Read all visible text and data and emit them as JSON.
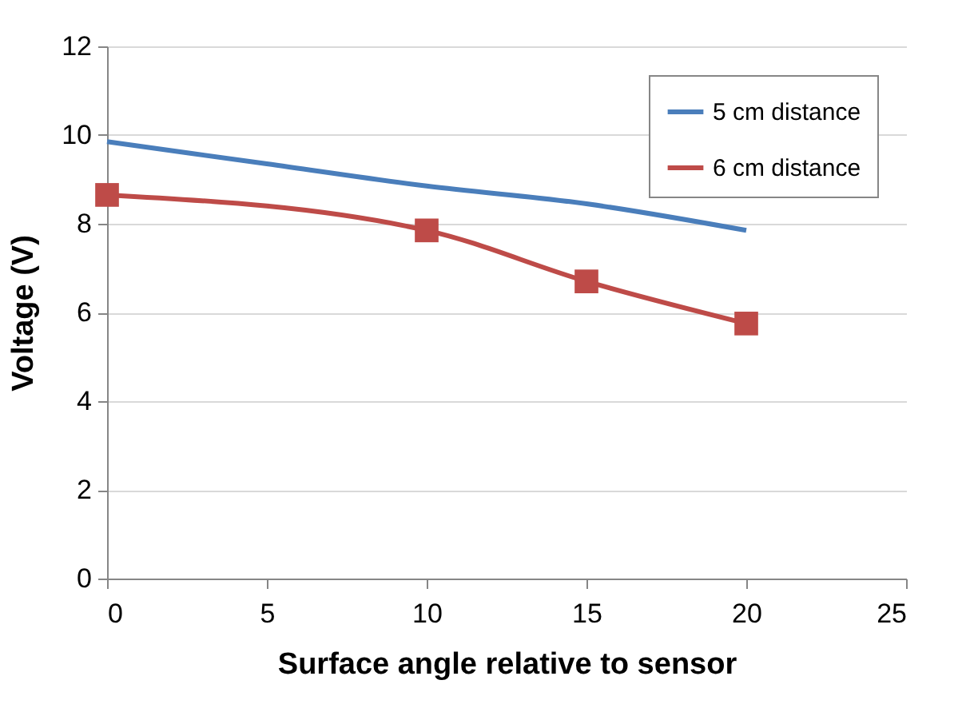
{
  "chart_data": {
    "type": "line",
    "xlabel": "Surface angle relative to sensor",
    "ylabel": "Voltage (V)",
    "xlim": [
      0,
      25
    ],
    "xticks": [
      0,
      5,
      10,
      15,
      20,
      25
    ],
    "ylim": [
      0,
      12
    ],
    "yticks": [
      0,
      2,
      4,
      6,
      8,
      10,
      12
    ],
    "grid": "y",
    "legend": "top right",
    "line_style": "solid",
    "series": [
      {
        "name": "5 cm distance",
        "color": "#4a7ebb",
        "marker": "none",
        "x": [
          0,
          5,
          10,
          15,
          20
        ],
        "values": [
          9.85,
          9.35,
          8.85,
          8.45,
          7.85
        ]
      },
      {
        "name": "6 cm distance",
        "color": "#be4b48",
        "marker": "square",
        "x": [
          0,
          10,
          15,
          20
        ],
        "values": [
          8.65,
          7.85,
          6.7,
          5.75
        ]
      }
    ]
  }
}
